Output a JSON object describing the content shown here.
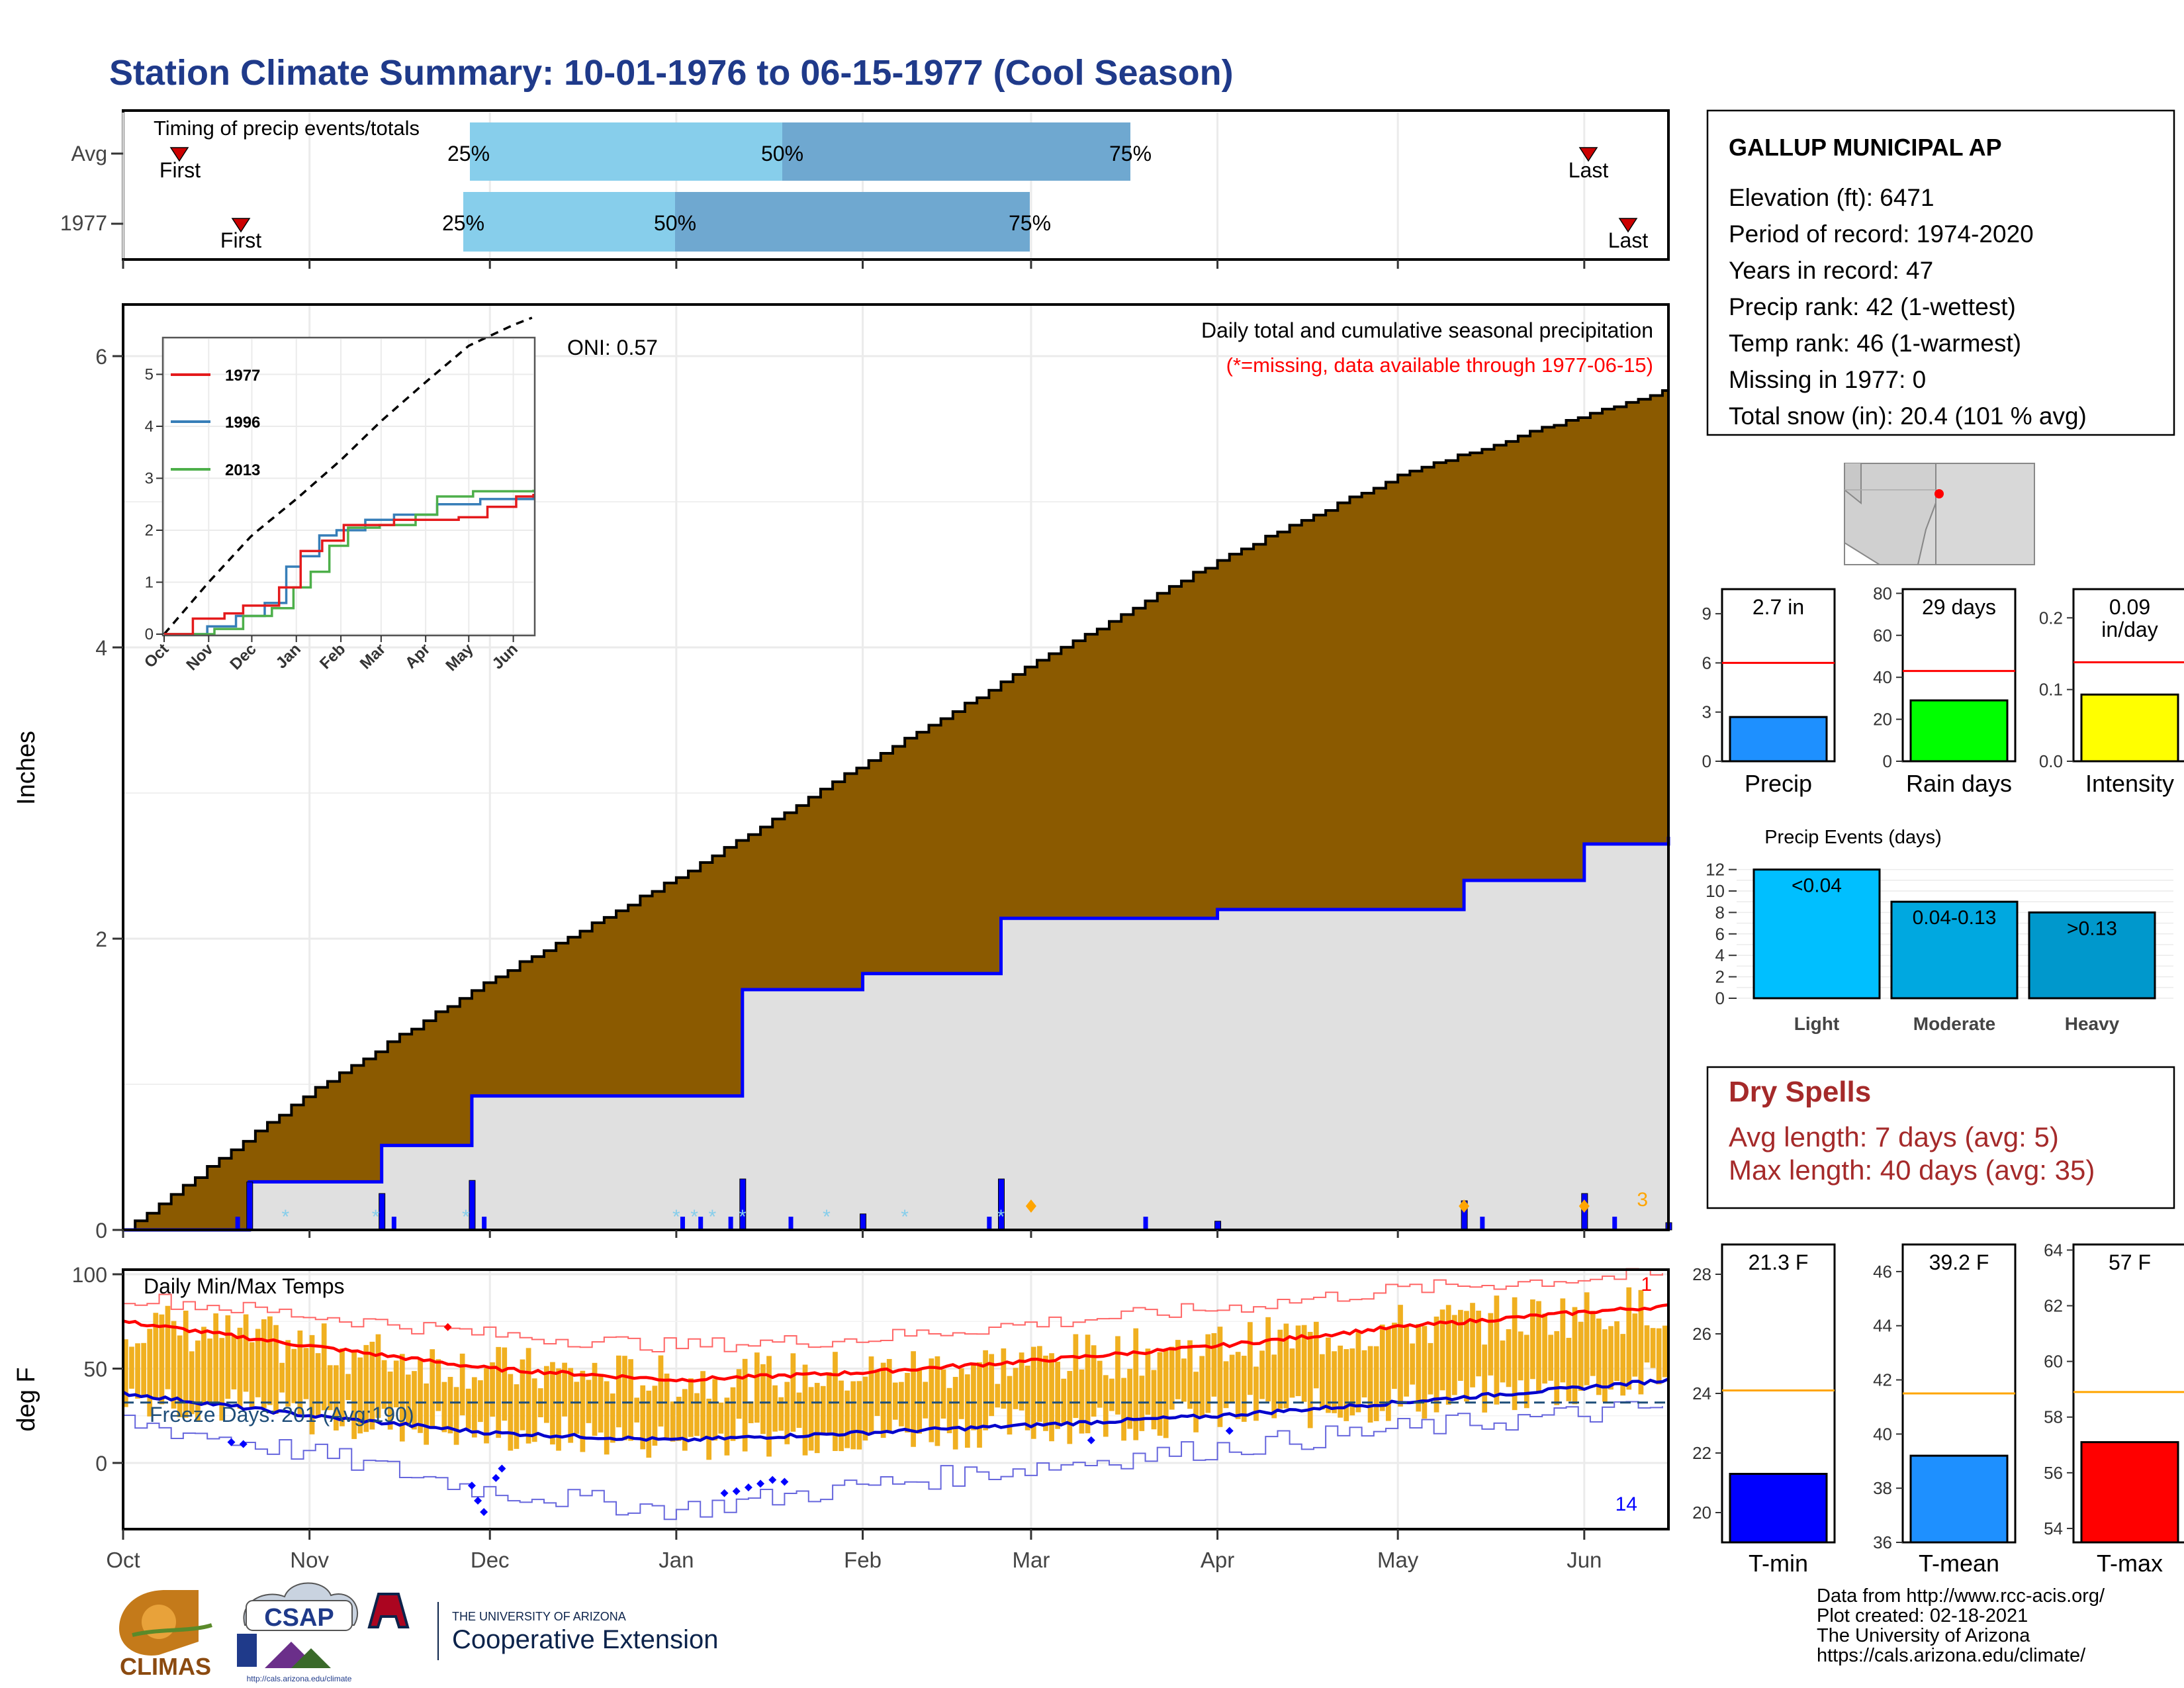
{
  "title": "Station Climate Summary: 10-01-1976 to 06-15-1977 (Cool Season)",
  "colors": {
    "title": "#1f3a8a",
    "dry_spells": "#a52a2a",
    "cum_avg_fill": "#8b5a00",
    "cum_obs_line": "#0000ff",
    "temp_bars": "#f0b020"
  },
  "timing_panel": {
    "title": "Timing of precip events/totals",
    "rows": [
      {
        "label": "Avg",
        "first": "First",
        "last": "Last",
        "pct25": "25%",
        "pct50": "50%",
        "pct75": "75%"
      },
      {
        "label": "1977",
        "first": "First",
        "last": "Last",
        "pct25": "25%",
        "pct50": "50%",
        "pct75": "75%"
      }
    ]
  },
  "precip_panel": {
    "ylabel": "Inches",
    "yticks": [
      "0",
      "2",
      "4",
      "6"
    ],
    "title": "Daily total and cumulative seasonal precipitation",
    "note": "(*=missing, data available through 1977-06-15)",
    "oni": "ONI: 0.57",
    "corner_count": "3"
  },
  "inset": {
    "yticks": [
      "0",
      "1",
      "2",
      "3",
      "4",
      "5"
    ],
    "months": [
      "Oct",
      "Nov",
      "Dec",
      "Jan",
      "Feb",
      "Mar",
      "Apr",
      "May",
      "Jun"
    ],
    "legend": [
      {
        "name": "1977",
        "color": "#e41a1c"
      },
      {
        "name": "1996",
        "color": "#377eb8"
      },
      {
        "name": "2013",
        "color": "#4daf4a"
      }
    ]
  },
  "temp_panel": {
    "ylabel": "deg F",
    "yticks": [
      "0",
      "50",
      "100"
    ],
    "title": "Daily Min/Max Temps",
    "freeze": "Freeze Days: 201 (Avg:190)",
    "count_max": "1",
    "count_min": "14"
  },
  "x_months": [
    "Oct",
    "Nov",
    "Dec",
    "Jan",
    "Feb",
    "Mar",
    "Apr",
    "May",
    "Jun"
  ],
  "station": {
    "name": "GALLUP MUNICIPAL AP",
    "lines": [
      "Elevation (ft): 6471",
      "Period of record: 1974-2020",
      "Years in record: 47",
      "Precip rank: 42 (1-wettest)",
      "Temp rank: 46 (1-warmest)",
      "Missing in 1977: 0",
      "Total snow (in): 20.4 (101 % avg)"
    ]
  },
  "mini_precip": [
    {
      "label": "Precip",
      "value_text": "2.7 in",
      "value": 2.7,
      "avg": 6.0,
      "ymax": 10.5,
      "ticks": [
        "0",
        "3",
        "6",
        "9"
      ],
      "tickvals": [
        0,
        3,
        6,
        9
      ],
      "color": "#1e90ff"
    },
    {
      "label": "Rain days",
      "value_text": "29 days",
      "value": 29,
      "avg": 43,
      "ymax": 82,
      "ticks": [
        "0",
        "20",
        "40",
        "60",
        "80"
      ],
      "tickvals": [
        0,
        20,
        40,
        60,
        80
      ],
      "color": "#00ff00"
    },
    {
      "label": "Intensity",
      "value_text": "0.09 in/day",
      "value": 0.093,
      "avg": 0.138,
      "ymax": 0.24,
      "ticks": [
        "0.0",
        "0.1",
        "0.2"
      ],
      "tickvals": [
        0,
        0.1,
        0.2
      ],
      "color": "#ffff00"
    }
  ],
  "precip_events": {
    "title": "Precip Events (days)",
    "yticks": [
      "0",
      "2",
      "4",
      "6",
      "8",
      "10",
      "12"
    ],
    "categories": [
      "Light",
      "Moderate",
      "Heavy"
    ],
    "bar_labels": [
      "<0.04",
      "0.04-0.13",
      ">0.13"
    ],
    "values": [
      12,
      9,
      8
    ],
    "colors": [
      "#00bfff",
      "#00a8e0",
      "#0098cc"
    ]
  },
  "dry_spells": {
    "title": "Dry Spells",
    "avg_line": "Avg length: 7 days (avg: 5)",
    "max_line": "Max length: 40 days (avg: 35)"
  },
  "mini_temp": [
    {
      "label": "T-min",
      "value_text": "21.3 F",
      "value": 21.3,
      "avg": 24.1,
      "ymin": 19,
      "ymax": 29,
      "ticks": [
        "20",
        "22",
        "24",
        "26",
        "28"
      ],
      "tickvals": [
        20,
        22,
        24,
        26,
        28
      ],
      "color": "#0000ff"
    },
    {
      "label": "T-mean",
      "value_text": "39.2 F",
      "value": 39.2,
      "avg": 41.5,
      "ymin": 36,
      "ymax": 47,
      "ticks": [
        "36",
        "38",
        "40",
        "42",
        "44",
        "46"
      ],
      "tickvals": [
        36,
        38,
        40,
        42,
        44,
        46
      ],
      "color": "#1e90ff"
    },
    {
      "label": "T-max",
      "value_text": "57 F",
      "value": 57.1,
      "avg": 58.9,
      "ymin": 53.5,
      "ymax": 64.2,
      "ticks": [
        "54",
        "56",
        "58",
        "60",
        "62",
        "64"
      ],
      "tickvals": [
        54,
        56,
        58,
        60,
        62,
        64
      ],
      "color": "#ff0000"
    }
  ],
  "footer": {
    "lines": [
      "Data from http://www.rcc-acis.org/",
      "Plot created: 02-18-2021",
      "The University of Arizona",
      "https://cals.arizona.edu/climate/"
    ],
    "logos": {
      "climas": "CLIMAS",
      "csap": "CSAP",
      "csap_url": "http://cals.arizona.edu/climate",
      "ua_small": "THE UNIVERSITY OF ARIZONA",
      "ua_big": "Cooperative Extension"
    }
  },
  "chart_data": [
    {
      "type": "area",
      "title": "Daily total and cumulative seasonal precipitation",
      "ylabel": "Inches",
      "ylim": [
        0,
        6.3
      ],
      "x_range": [
        "1976-10-01",
        "1977-06-15"
      ],
      "series": [
        {
          "name": "Average cumulative",
          "x": [
            "1976-10-01",
            "1976-11-01",
            "1976-12-01",
            "1977-01-01",
            "1977-02-01",
            "1977-03-01",
            "1977-04-01",
            "1977-05-01",
            "1977-06-01",
            "1977-06-15"
          ],
          "values": [
            0.0,
            0.95,
            1.72,
            2.42,
            3.2,
            3.88,
            4.6,
            5.18,
            5.6,
            5.77
          ]
        },
        {
          "name": "1977 cumulative",
          "x": [
            "1976-10-01",
            "1976-10-22",
            "1976-11-13",
            "1976-11-28",
            "1976-12-31",
            "1977-01-12",
            "1977-02-01",
            "1977-02-24",
            "1977-04-01",
            "1977-05-12",
            "1977-06-01",
            "1977-06-15"
          ],
          "values": [
            0.0,
            0.33,
            0.58,
            0.92,
            0.92,
            1.65,
            1.76,
            2.14,
            2.2,
            2.4,
            2.65,
            2.7
          ]
        }
      ]
    },
    {
      "type": "line",
      "title": "Daily Min/Max Temps",
      "ylabel": "deg F",
      "ylim": [
        -35,
        105
      ],
      "x_range": [
        "1976-10-01",
        "1977-06-15"
      ],
      "series": [
        {
          "name": "Normal max",
          "x": [
            "1976-10-01",
            "1976-11-01",
            "1976-12-01",
            "1977-01-01",
            "1977-02-01",
            "1977-03-01",
            "1977-04-01",
            "1977-05-01",
            "1977-06-01",
            "1977-06-15"
          ],
          "values": [
            75,
            62,
            50,
            44,
            48,
            54,
            62,
            72,
            80,
            83
          ]
        },
        {
          "name": "Normal min",
          "x": [
            "1976-10-01",
            "1976-11-01",
            "1976-12-01",
            "1977-01-01",
            "1977-02-01",
            "1977-03-01",
            "1977-04-01",
            "1977-05-01",
            "1977-06-01",
            "1977-06-15"
          ],
          "values": [
            37,
            25,
            16,
            12,
            16,
            20,
            25,
            32,
            40,
            44
          ]
        },
        {
          "name": "Record max",
          "x": [
            "1976-10-01",
            "1976-11-01",
            "1976-12-01",
            "1977-01-01",
            "1977-02-01",
            "1977-03-01",
            "1977-04-01",
            "1977-05-01",
            "1977-06-01",
            "1977-06-15"
          ],
          "values": [
            88,
            78,
            68,
            62,
            66,
            74,
            82,
            92,
            98,
            100
          ]
        },
        {
          "name": "Record min",
          "x": [
            "1976-10-01",
            "1976-11-01",
            "1976-12-01",
            "1977-01-01",
            "1977-02-01",
            "1977-03-01",
            "1977-04-01",
            "1977-05-01",
            "1977-06-01",
            "1977-06-15"
          ],
          "values": [
            22,
            5,
            -15,
            -25,
            -12,
            -2,
            8,
            18,
            26,
            30
          ]
        }
      ],
      "freeze_line": 32
    }
  ]
}
